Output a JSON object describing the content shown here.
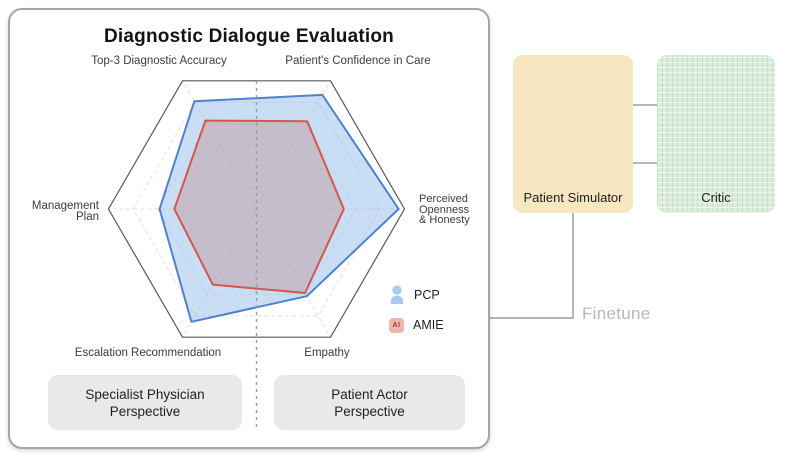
{
  "card": {
    "title": "Diagnostic Dialogue Evaluation",
    "specialist_box_label": "Specialist Physician\nPerspective",
    "patient_actor_box_label": "Patient Actor\nPerspective"
  },
  "chart_data": {
    "type": "radar",
    "title": "Diagnostic Dialogue Evaluation",
    "scale": [
      0,
      1
    ],
    "grid": {
      "rings": 5,
      "style": "dashed",
      "spokes": true,
      "outline": "hexagon"
    },
    "categories": [
      "Top-3 Diagnostic Accuracy",
      "Patient's Confidence in Care",
      "Perceived Openness & Honesty",
      "Empathy",
      "Escalation Recommendation",
      "Management Plan"
    ],
    "angles_deg": [
      120,
      60,
      0,
      300,
      240,
      180
    ],
    "axis_labels": [
      "Top-3 Diagnostic Accuracy",
      "Patient's Confidence in Care",
      "Perceived\nOpenness\n& Honesty",
      "Empathy",
      "Escalation Recommendation",
      "Management\nPlan"
    ],
    "series": [
      {
        "name": "PCP",
        "values": [
          0.84,
          0.89,
          0.96,
          0.68,
          0.88,
          0.655
        ],
        "stroke": "#4d82cc",
        "fill": "#93bbeb",
        "fill_opacity": 0.5
      },
      {
        "name": "AMIE",
        "values": [
          0.69,
          0.685,
          0.59,
          0.655,
          0.59,
          0.555
        ],
        "stroke": "#d4574a",
        "fill": "#c08080",
        "fill_opacity": 0.35
      }
    ],
    "legend_position": "right-middle",
    "annotations": [
      "Specialist Physician Perspective (left half)",
      "Patient Actor Perspective (right half)"
    ]
  },
  "legend": {
    "pcp_label": "PCP",
    "amie_label": "AMIE",
    "amie_icon_text": "AI"
  },
  "flow": {
    "patient_simulator_label": "Patient Simulator",
    "critic_label": "Critic",
    "finetune_label": "Finetune"
  },
  "colors": {
    "pcp_blue": "#4d82cc",
    "amie_red": "#d4574a",
    "patient_simulator_bg": "#f6e7c1",
    "critic_bg": "#d9edda",
    "finetune_text": "#b4b8bc"
  }
}
